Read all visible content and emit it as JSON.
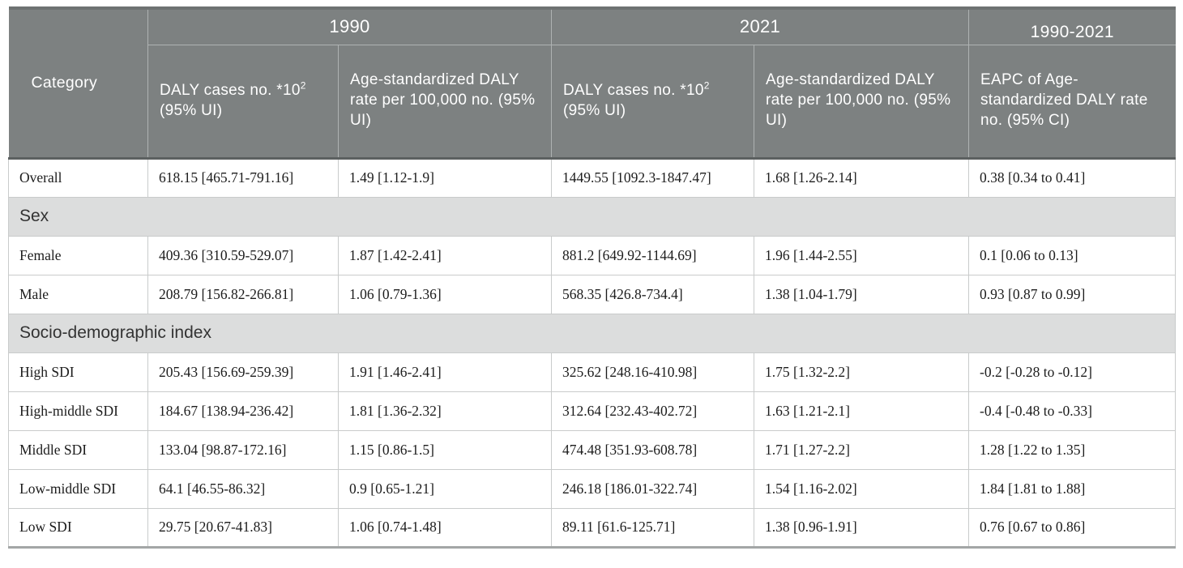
{
  "colors": {
    "header_bg": "#7d8181",
    "header_text": "#ffffff",
    "header_line": "#aeb2b2",
    "top_border": "#6e7272",
    "header_bottom": "#5c6060",
    "section_bg": "#dcdddd",
    "body_line": "#c9cbcb",
    "bottom_border": "#a3a6a6",
    "body_text": "#1c1c1c",
    "section_text": "#333333"
  },
  "table": {
    "category_header": "Category",
    "groups": [
      "1990",
      "2021",
      "1990-2021"
    ],
    "daly_cases_header": {
      "prefix": "DALY cases no. *10",
      "sup": "2",
      "suffix": " (95% UI)"
    },
    "age_std_header": "Age-standardized DALY rate per 100,000 no. (95% UI)",
    "eapc_header": "EAPC of Age-standardized DALY rate no. (95% CI)",
    "rows": [
      {
        "type": "data",
        "category": "Overall",
        "values": [
          "618.15 [465.71-791.16]",
          "1.49 [1.12-1.9]",
          "1449.55 [1092.3-1847.47]",
          "1.68 [1.26-2.14]",
          "0.38 [0.34 to 0.41]"
        ]
      },
      {
        "type": "section",
        "label": "Sex"
      },
      {
        "type": "data",
        "category": "Female",
        "values": [
          "409.36 [310.59-529.07]",
          "1.87 [1.42-2.41]",
          "881.2 [649.92-1144.69]",
          "1.96 [1.44-2.55]",
          "0.1 [0.06 to 0.13]"
        ]
      },
      {
        "type": "data",
        "category": "Male",
        "values": [
          "208.79 [156.82-266.81]",
          "1.06 [0.79-1.36]",
          "568.35 [426.8-734.4]",
          "1.38 [1.04-1.79]",
          "0.93 [0.87 to 0.99]"
        ]
      },
      {
        "type": "section",
        "label": "Socio-demographic index"
      },
      {
        "type": "data",
        "category": "High SDI",
        "values": [
          "205.43 [156.69-259.39]",
          "1.91 [1.46-2.41]",
          "325.62 [248.16-410.98]",
          "1.75 [1.32-2.2]",
          "-0.2 [-0.28 to -0.12]"
        ]
      },
      {
        "type": "data",
        "category": "High-middle SDI",
        "values": [
          "184.67 [138.94-236.42]",
          "1.81 [1.36-2.32]",
          "312.64 [232.43-402.72]",
          "1.63 [1.21-2.1]",
          "-0.4 [-0.48 to -0.33]"
        ]
      },
      {
        "type": "data",
        "category": "Middle SDI",
        "values": [
          "133.04 [98.87-172.16]",
          "1.15 [0.86-1.5]",
          "474.48 [351.93-608.78]",
          "1.71 [1.27-2.2]",
          "1.28 [1.22 to 1.35]"
        ]
      },
      {
        "type": "data",
        "category": "Low-middle SDI",
        "values": [
          "64.1 [46.55-86.32]",
          "0.9 [0.65-1.21]",
          "246.18 [186.01-322.74]",
          "1.54 [1.16-2.02]",
          "1.84 [1.81 to 1.88]"
        ]
      },
      {
        "type": "data",
        "category": "Low SDI",
        "values": [
          "29.75 [20.67-41.83]",
          "1.06 [0.74-1.48]",
          "89.11 [61.6-125.71]",
          "1.38 [0.96-1.91]",
          "0.76 [0.67 to 0.86]"
        ]
      }
    ]
  }
}
